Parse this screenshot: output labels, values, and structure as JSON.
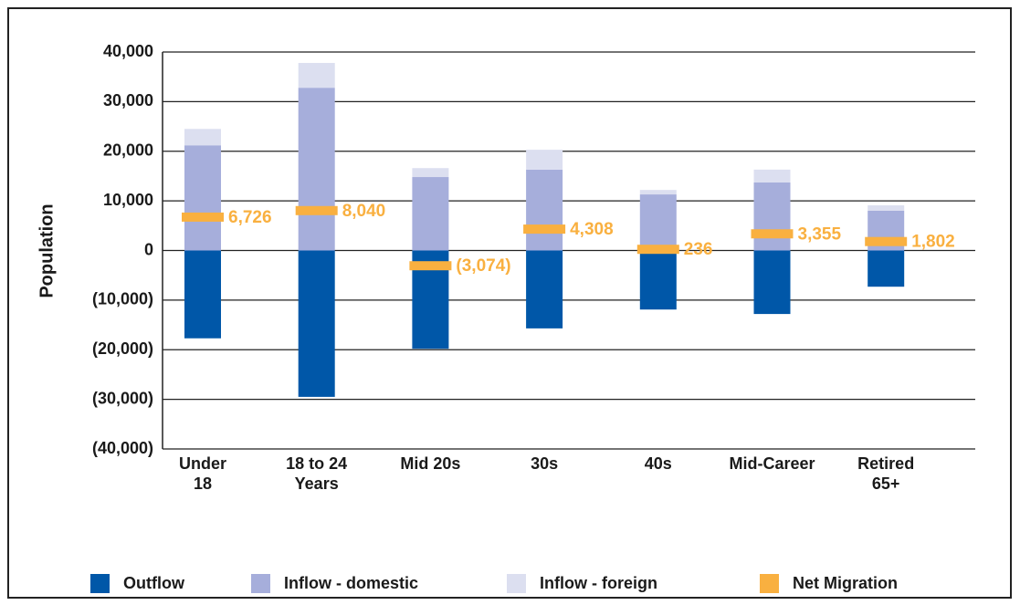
{
  "chart_data": {
    "type": "bar",
    "y_label": "Population",
    "categories": [
      "Under\n18",
      "18 to 24\nYears",
      "Mid 20s",
      "30s",
      "40s",
      "Mid-Career",
      "Retired\n65+"
    ],
    "series": [
      {
        "name": "Outflow",
        "type": "bar",
        "color": "#0057a8",
        "values": [
          -17700,
          -29500,
          -19800,
          -15700,
          -11900,
          -12800,
          -7300
        ]
      },
      {
        "name": "Inflow - domestic",
        "type": "bar",
        "color": "#a6aedb",
        "values": [
          21200,
          32800,
          14800,
          16300,
          11300,
          13700,
          8000
        ]
      },
      {
        "name": "Inflow - foreign",
        "type": "bar",
        "color": "#dcdff0",
        "values": [
          3300,
          5000,
          1800,
          4000,
          900,
          2600,
          1100
        ]
      },
      {
        "name": "Net Migration",
        "type": "marker",
        "color": "#f9b040",
        "values": [
          6726,
          8040,
          -3074,
          4308,
          236,
          3355,
          1802
        ],
        "value_labels": [
          "6,726",
          "8,040",
          "(3,074)",
          "4,308",
          "236",
          "3,355",
          "1,802"
        ]
      }
    ],
    "ylim": [
      -40000,
      40000
    ],
    "yticks": [
      {
        "value": -40000,
        "label": "(40,000)"
      },
      {
        "value": -30000,
        "label": "(30,000)"
      },
      {
        "value": -20000,
        "label": "(20,000)"
      },
      {
        "value": -10000,
        "label": "(10,000)"
      },
      0,
      {
        "value": 10000,
        "label": "10,000"
      },
      {
        "value": 20000,
        "label": "20,000"
      },
      {
        "value": 30000,
        "label": "30,000"
      },
      {
        "value": 40000,
        "label": "40,000"
      }
    ],
    "grid": true
  }
}
